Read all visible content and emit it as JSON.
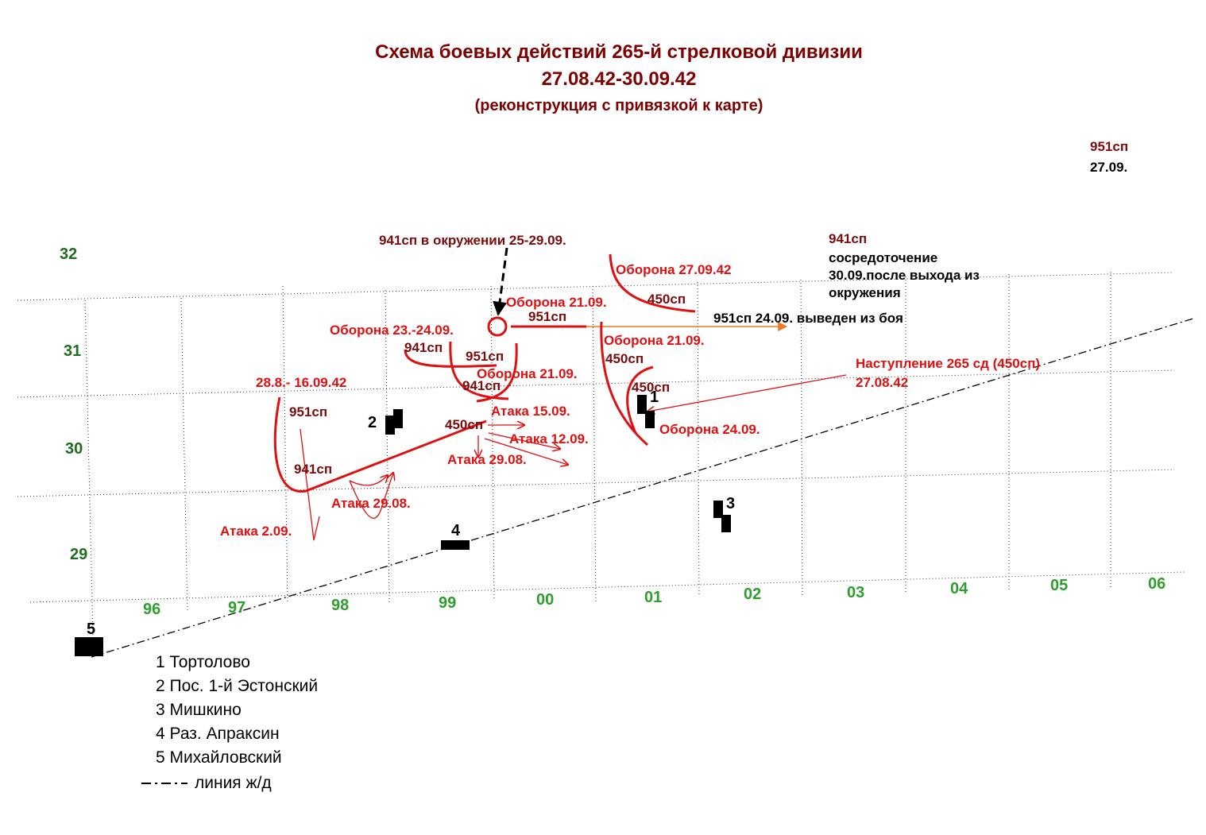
{
  "title": {
    "lines": [
      "Схема боевых действий 265-й стрелковой дивизии",
      "27.08.42-30.09.42",
      "(реконструкция с привязкой к карте)"
    ]
  },
  "grid": {
    "rows": [
      "32",
      "31",
      "30",
      "29"
    ],
    "columns": [
      "96",
      "97",
      "98",
      "99",
      "00",
      "01",
      "02",
      "03",
      "04",
      "05",
      "06"
    ]
  },
  "annotations": [
    "951сп",
    "27.09.",
    "941сп в окружении 25-29.09.",
    "941сп",
    "сосредоточение",
    "30.09.после выхода из",
    "окружения",
    "Оборона 27.09.42",
    "450сп",
    "Оборона 21.09.",
    "951сп",
    "951сп 24.09. выведен из боя",
    "Оборона 23.-24.09.",
    "941сп",
    "951сп",
    "Оборона 21.09.",
    "450сп",
    "Наступление 265 сд (450сп)",
    "27.08.42",
    "Оборона 21.09.",
    "941сп",
    "28.8.- 16.09.42",
    "450сп",
    "951сп",
    "Атака 15.09.",
    "450сп",
    "Атака 12.09.",
    "Оборона 24.09.",
    "Атака 29.08.",
    "941сп",
    "Атака 29.08.",
    "Атака 2.09."
  ],
  "places": [
    "1",
    "2",
    "3",
    "4",
    "5"
  ],
  "legend": {
    "items": [
      "1 Тортолово",
      "2 Пос. 1-й Эстонский",
      "3 Мишкино",
      "4 Раз. Апраксин",
      "5 Михайловский"
    ],
    "railway": "линия ж/д"
  }
}
